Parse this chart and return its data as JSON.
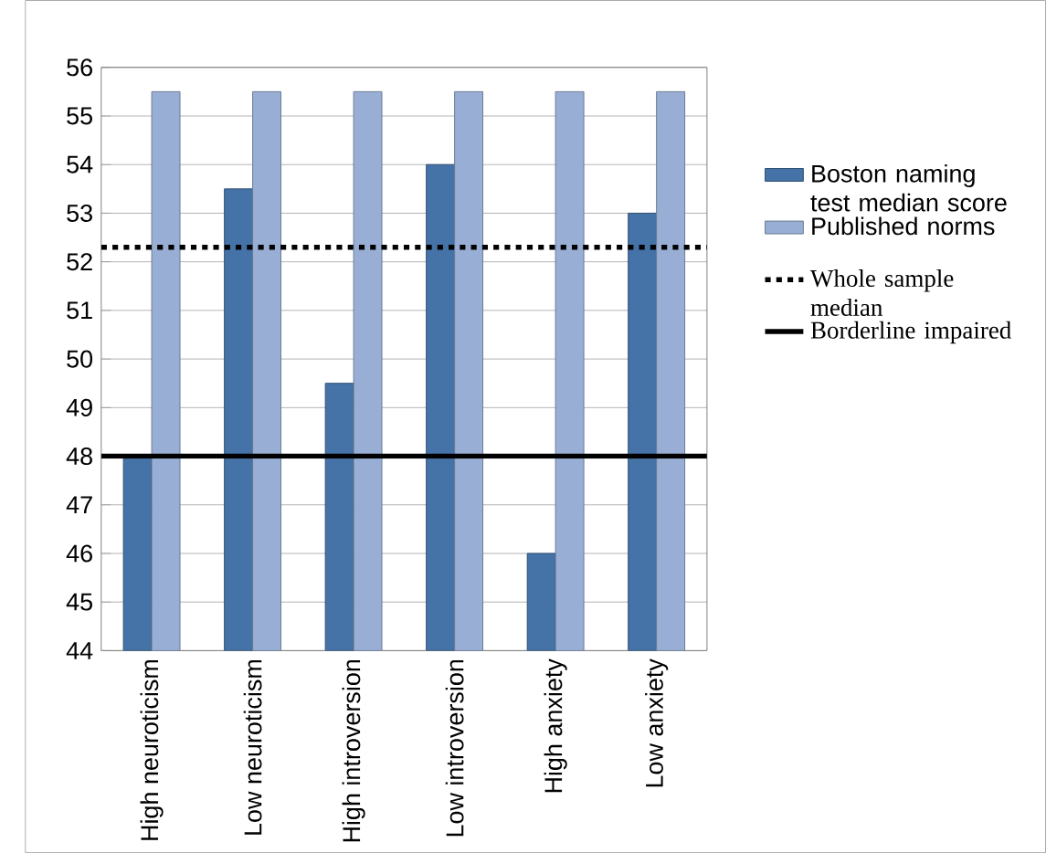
{
  "chart_data": {
    "type": "bar",
    "categories": [
      "High neuroticism",
      "Low neuroticism",
      "High introversion",
      "Low introversion",
      "High anxiety",
      "Low anxiety"
    ],
    "series": [
      {
        "name": "Boston naming test median score",
        "color": "#4572a7",
        "values": [
          48,
          53.5,
          49.5,
          54,
          46,
          53
        ]
      },
      {
        "name": "Published norms",
        "color": "#98aed4",
        "values": [
          55.5,
          55.5,
          55.5,
          55.5,
          55.5,
          55.5
        ]
      }
    ],
    "ylim": [
      44,
      56
    ],
    "yticks": [
      44,
      45,
      46,
      47,
      48,
      49,
      50,
      51,
      52,
      53,
      54,
      55,
      56
    ],
    "ref_lines": [
      {
        "axis": "y",
        "value": 52.3,
        "label": "Whole sample median",
        "color": "#000000",
        "line_style": "dotted"
      },
      {
        "axis": "y",
        "value": 48,
        "label": "Borderline impaired",
        "color": "#000000",
        "line_style": "solid"
      }
    ],
    "grid": "y",
    "legend": "right"
  }
}
